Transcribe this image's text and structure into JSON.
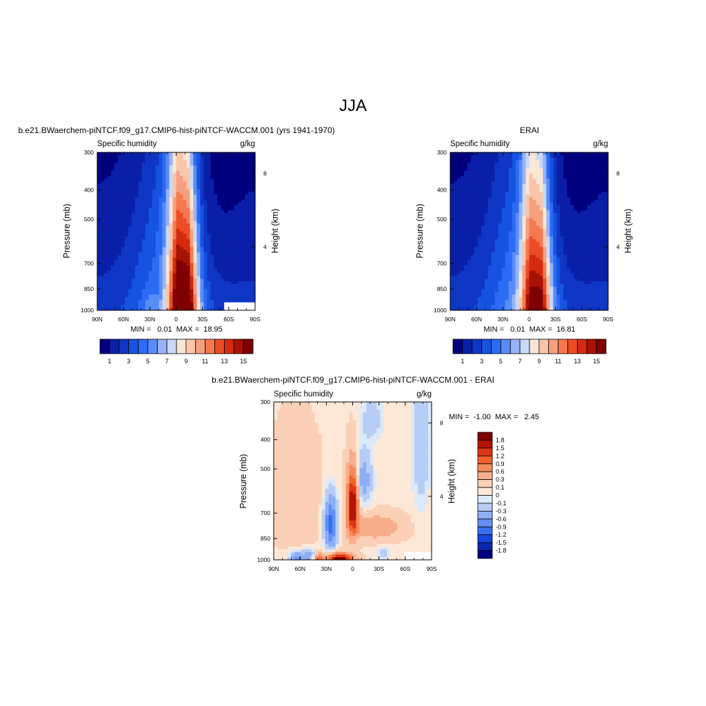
{
  "figure_title": "JJA",
  "chart_data": [
    {
      "type": "heatmap",
      "title": "b.e21.BWaerchem-piNTCF.f09_g17.CMIP6-hist-piNTCF-WACCM.001 (yrs 1941-1970)",
      "left_label": "Specific humidity",
      "right_label": "g/kg",
      "ylabel": "Pressure (mb)",
      "ylabel_right": "Height (km)",
      "x_ticks": [
        "90N",
        "60N",
        "30N",
        "0",
        "30S",
        "60S",
        "90S"
      ],
      "y_ticks": [
        "300",
        "400",
        "500",
        "700",
        "850",
        "1000"
      ],
      "height_ticks": [
        "8",
        "4"
      ],
      "stats": "MIN =   0.01  MAX =  18.95",
      "colorbar_labels": [
        "1",
        "3",
        "5",
        "7",
        "9",
        "11",
        "13",
        "15"
      ],
      "peak_lat": -8,
      "peak_value": 18.95,
      "masked_region": {
        "lat_from": -55,
        "lat_to": -90,
        "p_from": 950,
        "p_to": 1000
      }
    },
    {
      "type": "heatmap",
      "title": "ERAI",
      "left_label": "Specific humidity",
      "right_label": "g/kg",
      "ylabel": "Pressure (mb)",
      "ylabel_right": "Height (km)",
      "x_ticks": [
        "90N",
        "60N",
        "30N",
        "0",
        "30S",
        "60S",
        "90S"
      ],
      "y_ticks": [
        "300",
        "400",
        "500",
        "700",
        "850",
        "1000"
      ],
      "height_ticks": [
        "8",
        "4"
      ],
      "stats": "MIN =   0.01  MAX =  16.81",
      "colorbar_labels": [
        "1",
        "3",
        "5",
        "7",
        "9",
        "11",
        "13",
        "15"
      ],
      "peak_lat": -8,
      "peak_value": 16.81
    },
    {
      "type": "heatmap",
      "title": "b.e21.BWaerchem-piNTCF.f09_g17.CMIP6-hist-piNTCF-WACCM.001 - ERAI",
      "left_label": "Specific humidity",
      "right_label": "g/kg",
      "ylabel": "Pressure (mb)",
      "ylabel_right": "Height (km)",
      "x_ticks": [
        "90N",
        "60N",
        "30N",
        "0",
        "30S",
        "60S",
        "90S"
      ],
      "y_ticks": [
        "300",
        "400",
        "500",
        "700",
        "850",
        "1000"
      ],
      "height_ticks": [
        "8",
        "4"
      ],
      "stats": "MIN =  -1.00  MAX =   2.45",
      "colorbar_labels": [
        "1.8",
        "1.5",
        "1.2",
        "0.9",
        "0.6",
        "0.3",
        "0.1",
        "0",
        "-0.1",
        "-0.3",
        "-0.6",
        "-0.9",
        "-1.2",
        "-1.5",
        "-1.8"
      ]
    }
  ],
  "colors": {
    "full_palette": [
      "#00007f",
      "#0a1fa8",
      "#0f36c4",
      "#1553e0",
      "#2b6bf5",
      "#5a8cf7",
      "#96b4f7",
      "#c8d9f5",
      "#f9e6d5",
      "#fac5aa",
      "#f7a07f",
      "#f6784f",
      "#ec4c26",
      "#d32a10",
      "#a81204",
      "#7f0000"
    ],
    "diff_palette_high_to_low": [
      "#7f0000",
      "#b41504",
      "#de3512",
      "#f4622e",
      "#f78a5c",
      "#f8ae8c",
      "#fbd0b6",
      "#fde8d8",
      "#dce9fa",
      "#b6cdf6",
      "#8daef6",
      "#628ff5",
      "#386ef2",
      "#1648dd",
      "#0b24b2",
      "#00007f"
    ]
  }
}
